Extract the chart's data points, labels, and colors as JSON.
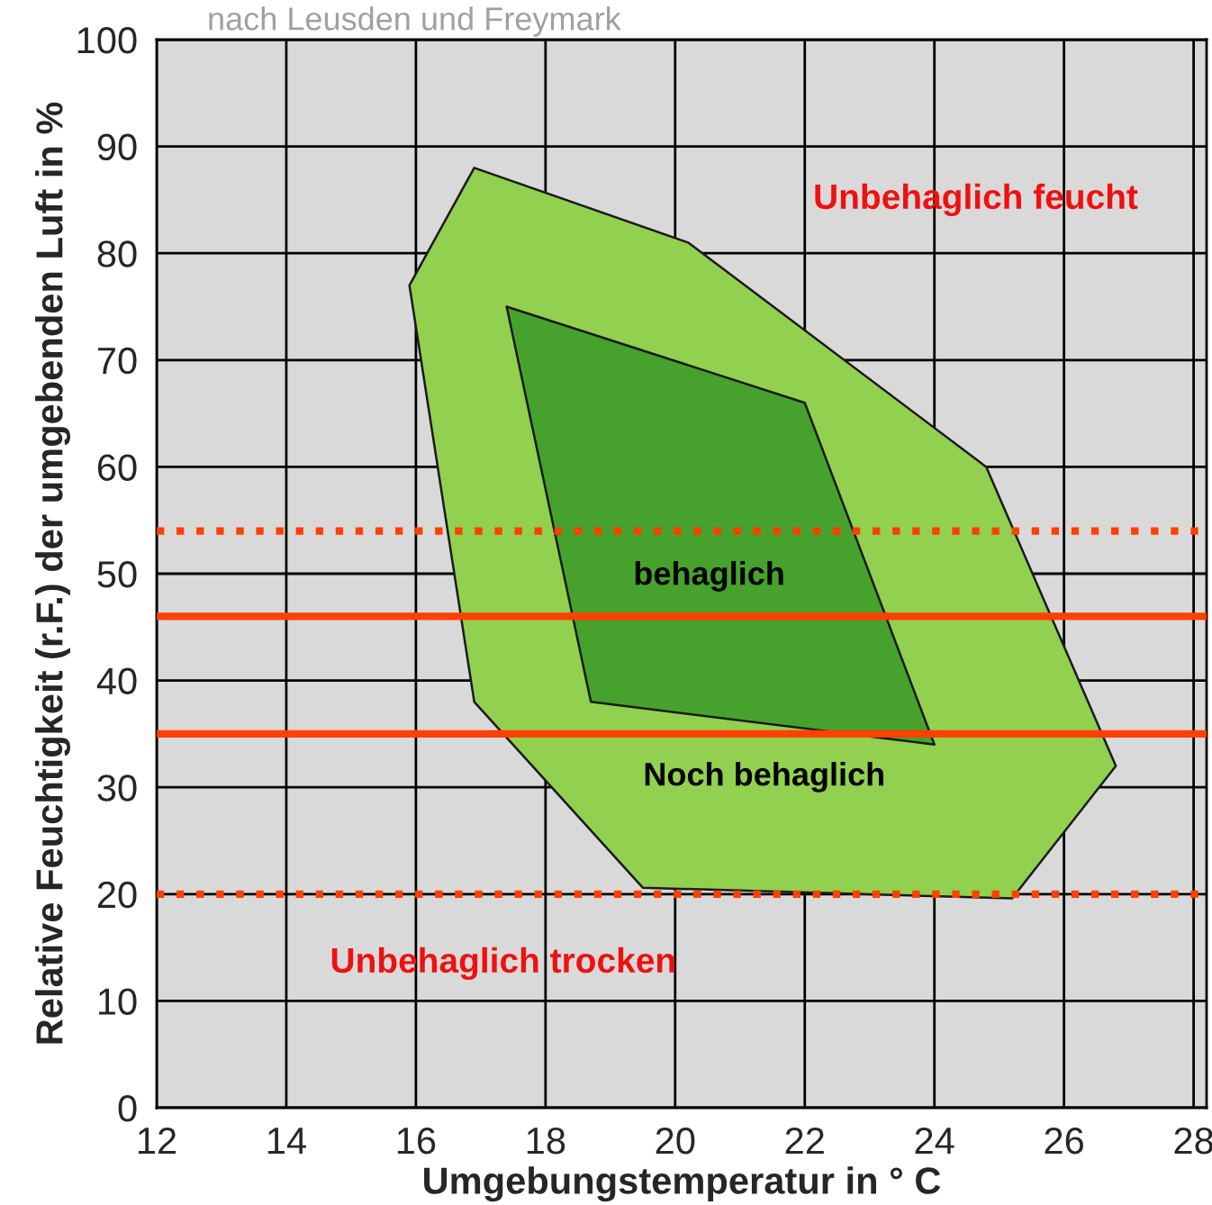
{
  "chart_data": {
    "type": "area",
    "xlabel": "Umgebungstemperatur in ° C",
    "ylabel": "Relative Feuchtigkeit (r.F.) der umgebenden Luft in %",
    "series": [
      {
        "name": "Noch behaglich",
        "color": "#92d050",
        "x": [
          16.9,
          20.2,
          24.8,
          26.8,
          25.2,
          19.5,
          16.9,
          15.9
        ],
        "values": [
          88,
          81,
          60,
          32,
          19.6,
          20.6,
          38,
          77
        ]
      },
      {
        "name": "behaglich",
        "color": "#46a22c",
        "x": [
          17.4,
          22.0,
          24.0,
          18.7
        ],
        "values": [
          75,
          66,
          34,
          38
        ]
      }
    ],
    "xlim": [
      12,
      28.2
    ],
    "ylim": [
      0,
      100
    ],
    "xticks": [
      12,
      14,
      16,
      18,
      20,
      22,
      24,
      26,
      28
    ],
    "yticks": [
      0,
      10,
      20,
      30,
      40,
      50,
      60,
      70,
      80,
      90,
      100
    ],
    "grid": true,
    "ref_lines": [
      {
        "axis": "y",
        "value": 54,
        "color": "#ff4000",
        "line_style": "dotted"
      },
      {
        "axis": "y",
        "value": 46,
        "color": "#ff4000",
        "line_style": "solid"
      },
      {
        "axis": "y",
        "value": 35,
        "color": "#ff4000",
        "line_style": "solid"
      },
      {
        "axis": "y",
        "value": 20,
        "color": "#ff4000",
        "line_style": "dotted"
      }
    ],
    "annotations": [
      "nach Leusden und Freymark",
      "Unbehaglich feucht",
      "Unbehaglich trocken"
    ]
  }
}
